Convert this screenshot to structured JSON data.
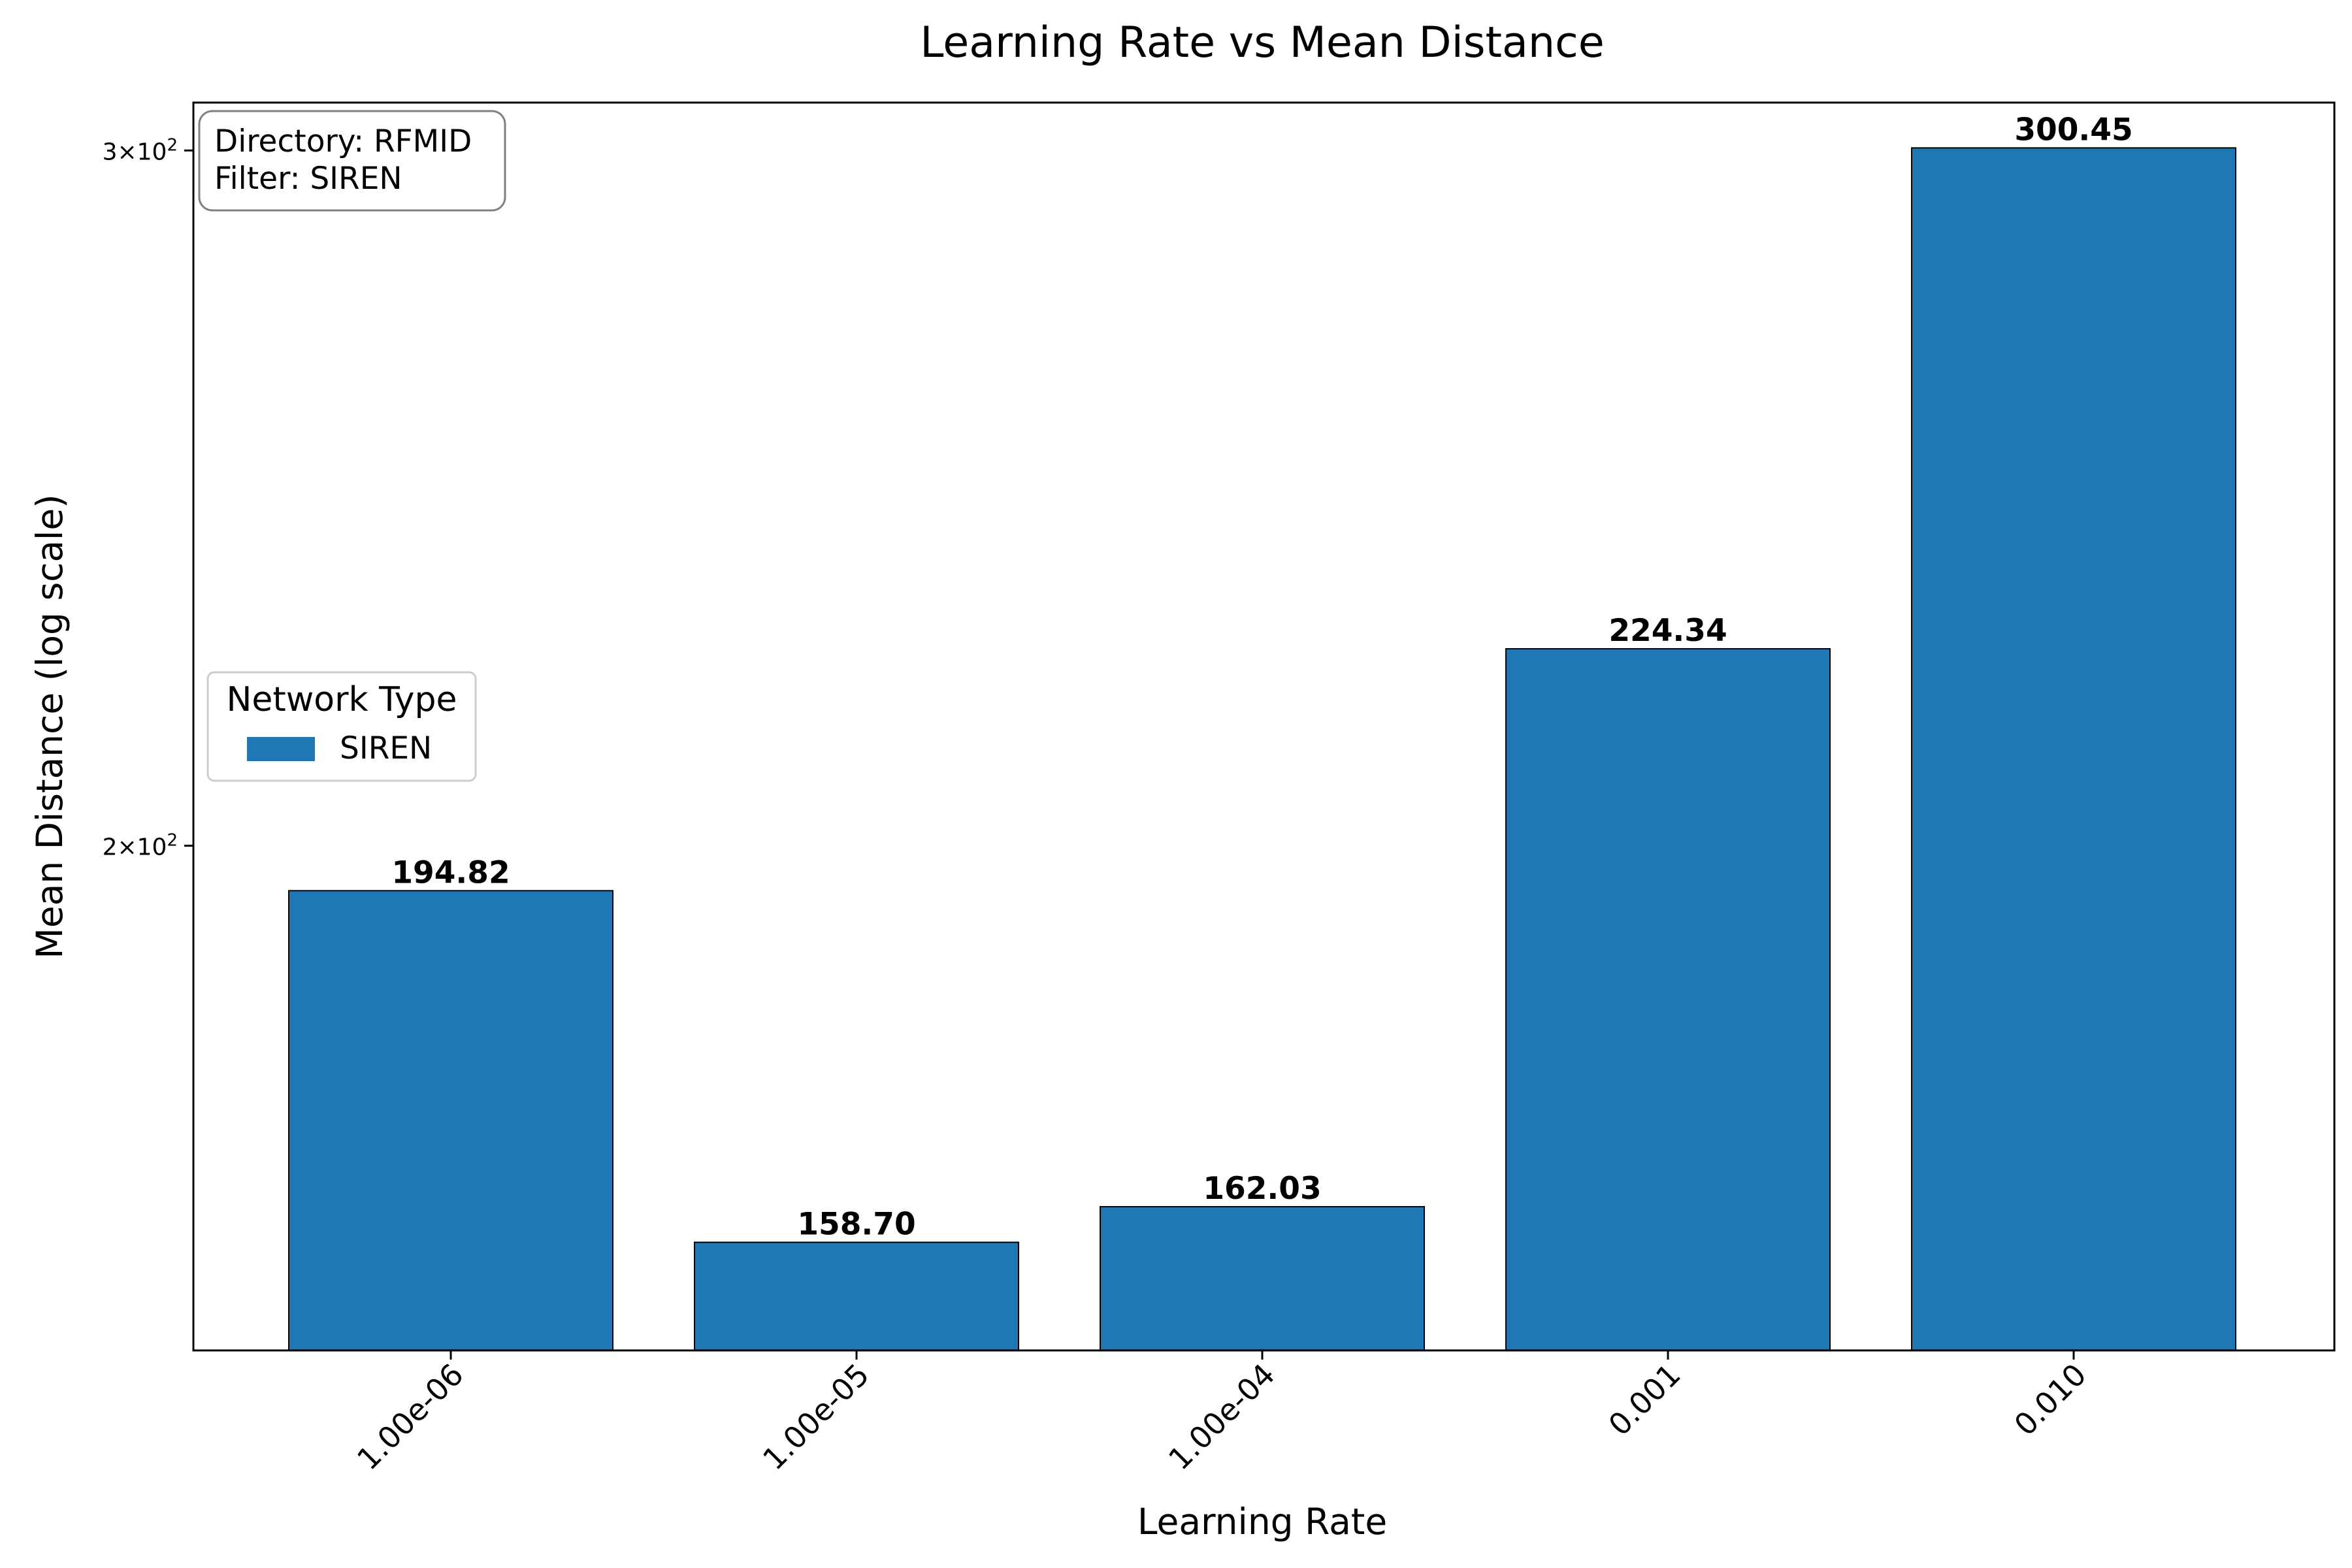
{
  "colors": {
    "bar": "#1f77b4",
    "bar_edge": "#000000",
    "axis": "#000000",
    "background": "#ffffff",
    "box_border": "#808080"
  },
  "chart_data": {
    "type": "bar",
    "title": "Learning Rate vs Mean Distance",
    "xlabel": "Learning Rate",
    "ylabel": "Mean Distance (log scale)",
    "yscale": "log",
    "ylim": [
      149.0,
      308.5
    ],
    "yticks": [
      {
        "value": 200,
        "base": "2",
        "exp": "2"
      },
      {
        "value": 300,
        "base": "3",
        "exp": "2"
      }
    ],
    "categories": [
      "1.00e-06",
      "1.00e-05",
      "1.00e-04",
      "0.001",
      "0.010"
    ],
    "series": [
      {
        "name": "SIREN",
        "values": [
          194.82,
          158.7,
          162.03,
          224.34,
          300.45
        ],
        "value_labels": [
          "194.82",
          "158.70",
          "162.03",
          "224.34",
          "300.45"
        ]
      }
    ],
    "legend": {
      "title": "Network Type",
      "entries": [
        "SIREN"
      ],
      "placement": "center-left"
    },
    "annotation": {
      "lines": [
        "Directory: RFMID",
        "Filter: SIREN"
      ],
      "placement": "top-left"
    },
    "grid": false
  }
}
